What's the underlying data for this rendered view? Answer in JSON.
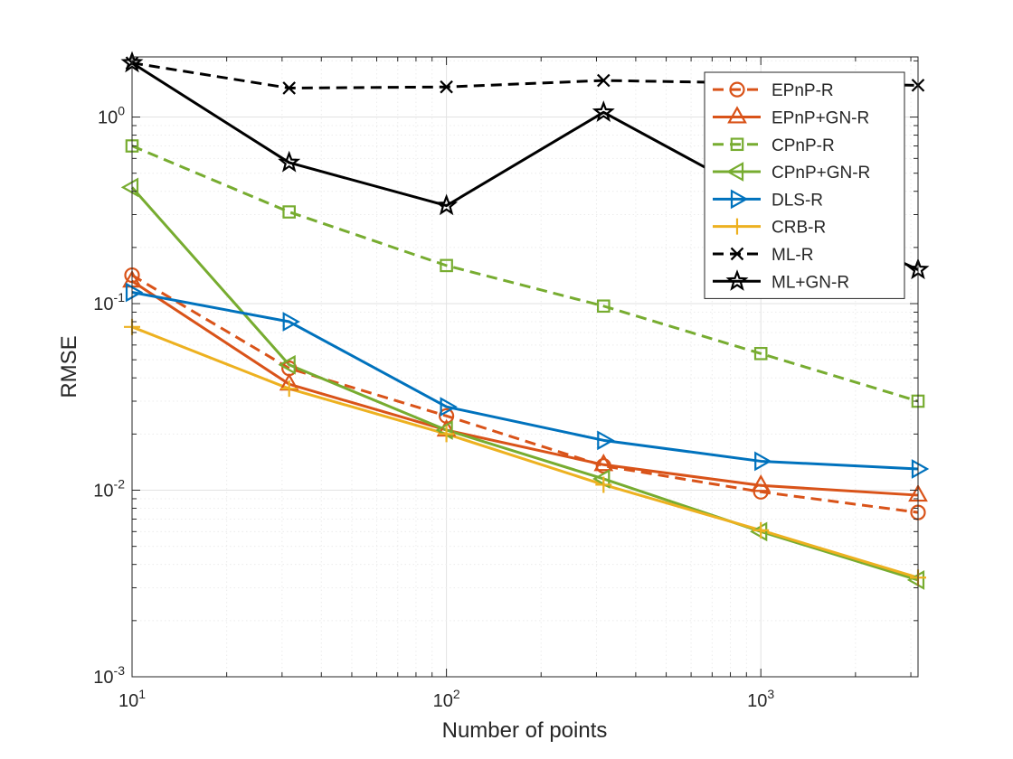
{
  "chart_data": {
    "type": "line",
    "title": "",
    "xlabel": "Number of points",
    "ylabel": "RMSE",
    "xscale": "log",
    "yscale": "log",
    "xlim": [
      10,
      3162
    ],
    "ylim": [
      0.001,
      2.1
    ],
    "grid": true,
    "minor_grid": true,
    "legend_position": "top-right",
    "x_ticks": [
      {
        "value": 10,
        "base": "10",
        "exp": "1"
      },
      {
        "value": 100,
        "base": "10",
        "exp": "2"
      },
      {
        "value": 1000,
        "base": "10",
        "exp": "3"
      }
    ],
    "y_ticks": [
      {
        "value": 0.001,
        "base": "10",
        "exp": "-3"
      },
      {
        "value": 0.01,
        "base": "10",
        "exp": "-2"
      },
      {
        "value": 0.1,
        "base": "10",
        "exp": "-1"
      },
      {
        "value": 1,
        "base": "10",
        "exp": "0"
      }
    ],
    "x": [
      10,
      31.6,
      100,
      316,
      1000,
      3162
    ],
    "series": [
      {
        "name": "EPnP-R",
        "color": "#D95319",
        "dash": "dashed",
        "marker": "circle",
        "values": [
          0.142,
          0.045,
          0.025,
          0.0135,
          0.0098,
          0.0076
        ]
      },
      {
        "name": "EPnP+GN-R",
        "color": "#D95319",
        "dash": "solid",
        "marker": "triangle-up",
        "values": [
          0.132,
          0.037,
          0.021,
          0.0137,
          0.0106,
          0.0094
        ]
      },
      {
        "name": "CPnP-R",
        "color": "#77AC30",
        "dash": "dashed",
        "marker": "square",
        "values": [
          0.7,
          0.31,
          0.16,
          0.097,
          0.054,
          0.03
        ]
      },
      {
        "name": "CPnP+GN-R",
        "color": "#77AC30",
        "dash": "solid",
        "marker": "triangle-left",
        "values": [
          0.42,
          0.047,
          0.021,
          0.0115,
          0.006,
          0.0033
        ]
      },
      {
        "name": "DLS-R",
        "color": "#0072BD",
        "dash": "solid",
        "marker": "triangle-right",
        "values": [
          0.115,
          0.08,
          0.028,
          0.0185,
          0.0143,
          0.013
        ]
      },
      {
        "name": "CRB-R",
        "color": "#EDB120",
        "dash": "solid",
        "marker": "plus",
        "values": [
          0.075,
          0.035,
          0.02,
          0.0107,
          0.0061,
          0.0034
        ]
      },
      {
        "name": "ML-R",
        "color": "#000000",
        "dash": "dashed",
        "marker": "x",
        "values": [
          1.95,
          1.43,
          1.45,
          1.57,
          1.52,
          1.48
        ]
      },
      {
        "name": "ML+GN-R",
        "color": "#000000",
        "dash": "solid",
        "marker": "pentagram",
        "values": [
          1.95,
          0.57,
          0.335,
          1.06,
          0.37,
          0.152
        ]
      }
    ]
  }
}
